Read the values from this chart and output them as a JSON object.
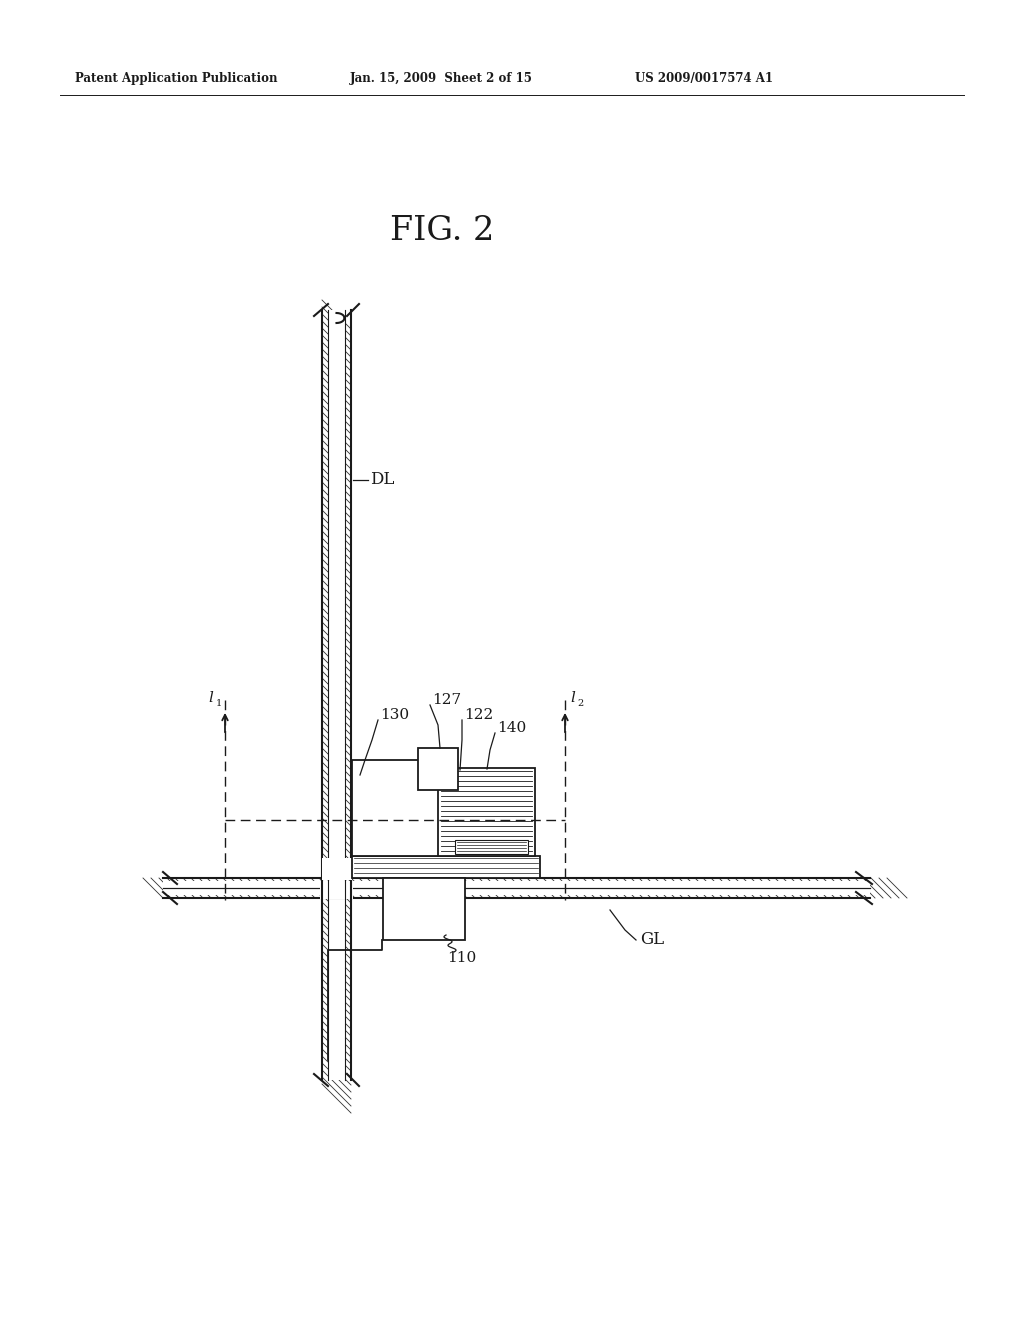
{
  "title": "FIG. 2",
  "header_left": "Patent Application Publication",
  "header_mid": "Jan. 15, 2009  Sheet 2 of 15",
  "header_right": "US 2009/0017574 A1",
  "bg_color": "#ffffff",
  "line_color": "#1a1a1a",
  "label_DL": "DL",
  "label_GL": "GL",
  "label_110": "110",
  "label_122": "122",
  "label_127": "127",
  "label_130": "130",
  "label_140": "140",
  "label_I1": "l1",
  "label_I2": "l2"
}
